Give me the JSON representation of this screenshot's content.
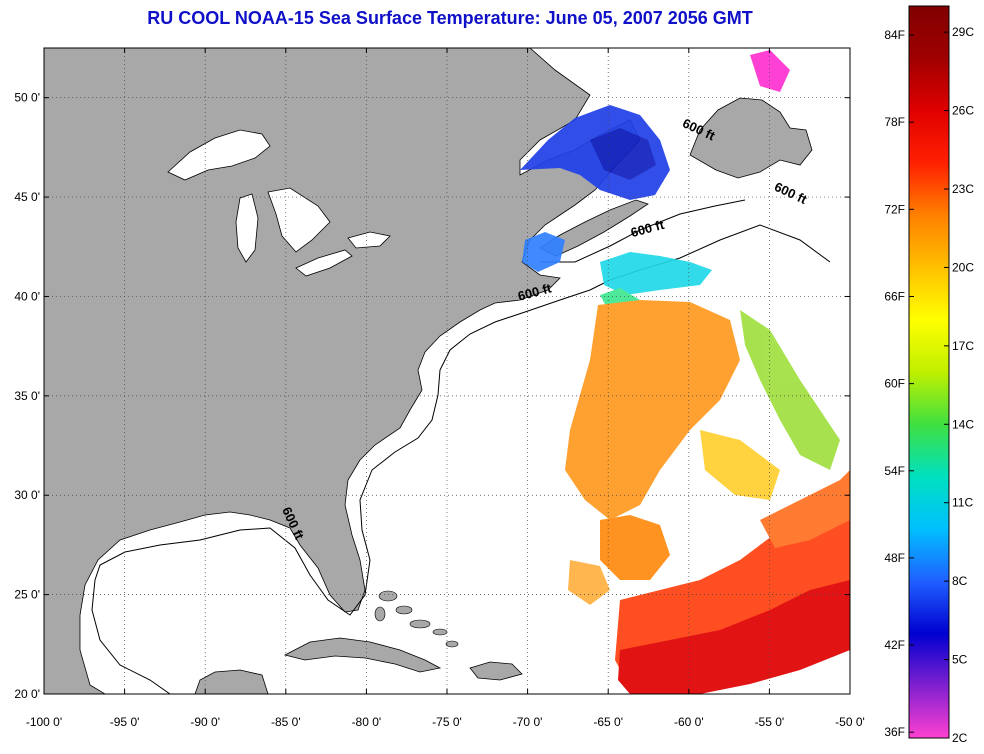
{
  "title": "RU COOL  NOAA-15  Sea Surface Temperature:  June 05, 2007 2056 GMT",
  "map": {
    "lon_range": [
      -100,
      -50
    ],
    "lat_range": [
      20,
      52.5
    ],
    "grid": true,
    "land_color": "#a8a8a8",
    "ocean_color": "#ffffff",
    "lat_ticks": [
      {
        "lat": 50,
        "label": "50 0'"
      },
      {
        "lat": 45,
        "label": "45 0'"
      },
      {
        "lat": 40,
        "label": "40 0'"
      },
      {
        "lat": 35,
        "label": "35 0'"
      },
      {
        "lat": 30,
        "label": "30 0'"
      },
      {
        "lat": 25,
        "label": "25 0'"
      },
      {
        "lat": 20,
        "label": "20 0'"
      }
    ],
    "lon_ticks": [
      {
        "lon": -100,
        "label": "-100 0'"
      },
      {
        "lon": -95,
        "label": "-95 0'"
      },
      {
        "lon": -90,
        "label": "-90 0'"
      },
      {
        "lon": -85,
        "label": "-85 0'"
      },
      {
        "lon": -80,
        "label": "-80 0'"
      },
      {
        "lon": -75,
        "label": "-75 0'"
      },
      {
        "lon": -70,
        "label": "-70 0'"
      },
      {
        "lon": -65,
        "label": "-65 0'"
      },
      {
        "lon": -60,
        "label": "-60 0'"
      },
      {
        "lon": -55,
        "label": "-55 0'"
      },
      {
        "lon": -50,
        "label": "-50 0'"
      }
    ],
    "contour_labels": [
      {
        "text": "600 ft",
        "lon": -59.5,
        "lat": 48.2,
        "rotate": 25
      },
      {
        "text": "600 ft",
        "lon": -53.8,
        "lat": 45.0,
        "rotate": 25
      },
      {
        "text": "600 ft",
        "lon": -62.5,
        "lat": 43.2,
        "rotate": -15
      },
      {
        "text": "600 ft",
        "lon": -69.5,
        "lat": 40.0,
        "rotate": -15
      },
      {
        "text": "600 ft",
        "lon": -84.8,
        "lat": 28.5,
        "rotate": 65
      }
    ]
  },
  "colorbar": {
    "fahrenheit_labels": [
      "84F",
      "78F",
      "72F",
      "66F",
      "60F",
      "54F",
      "48F",
      "42F",
      "36F"
    ],
    "celsius_labels": [
      "29C",
      "26C",
      "23C",
      "20C",
      "17C",
      "14C",
      "11C",
      "8C",
      "5C",
      "2C"
    ],
    "celsius_range": [
      2,
      30
    ],
    "stops": [
      "#ff40d0",
      "#8020d0",
      "#0000d0",
      "#2060ff",
      "#00c0ff",
      "#00e0c0",
      "#40e040",
      "#c0f000",
      "#ffff00",
      "#ffc000",
      "#ff8000",
      "#ff2000",
      "#e00000",
      "#a00000",
      "#800000"
    ]
  }
}
